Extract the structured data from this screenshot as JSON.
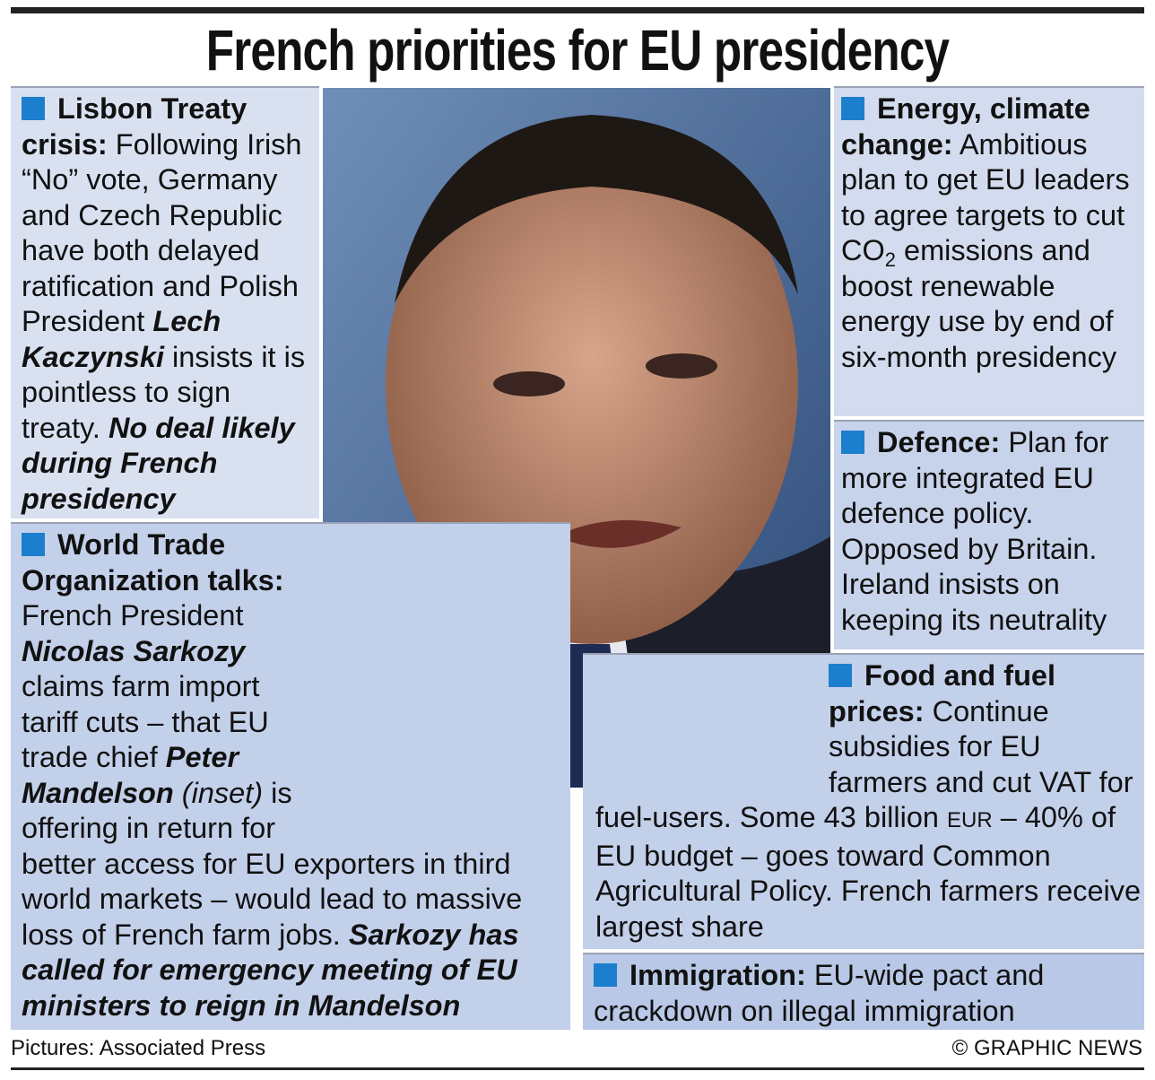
{
  "title": "French priorities for EU presidency",
  "sections": [
    {
      "heading": "Lisbon Treaty crisis:",
      "body": [
        "Following Irish “No” vote, Germany and Czech Republic have both delayed ratification and Polish President",
        "Lech Kaczynski",
        "insists it is pointless to sign treaty.",
        "No deal likely during French presidency"
      ]
    },
    {
      "heading": "World Trade Organization talks:",
      "body": [
        "French President",
        "Nicolas Sarkozy",
        "claims farm import tariff cuts – that EU trade chief",
        "Peter Mandelson",
        "(inset)",
        "is offering in return for better access for EU exporters in third world markets – would lead to massive loss of French farm jobs.",
        "Sarkozy has called for emergency meeting of EU ministers to reign in Mandelson"
      ]
    },
    {
      "heading": "Energy, climate change:",
      "body": [
        "Ambitious plan to get EU leaders to agree targets to cut CO",
        "2",
        "emissions and boost renewable energy use by end of six-month presidency"
      ]
    },
    {
      "heading": "Defence:",
      "body": [
        "Plan for more integrated EU defence policy. Opposed by Britain. Ireland insists on keeping its neutrality"
      ]
    },
    {
      "heading": "Food and fuel prices:",
      "body": [
        "Continue subsidies for EU farmers and cut VAT for fuel-users. Some 43 billion",
        "EUR",
        "– 40% of EU budget – goes toward Common Agricultural Policy. French farmers receive largest share"
      ]
    },
    {
      "heading": "Immigration:",
      "body": [
        "EU-wide pact and crackdown on illegal immigration"
      ]
    }
  ],
  "footer": {
    "credit": "Pictures: Associated Press",
    "copyright": "© GRAPHIC NEWS"
  }
}
